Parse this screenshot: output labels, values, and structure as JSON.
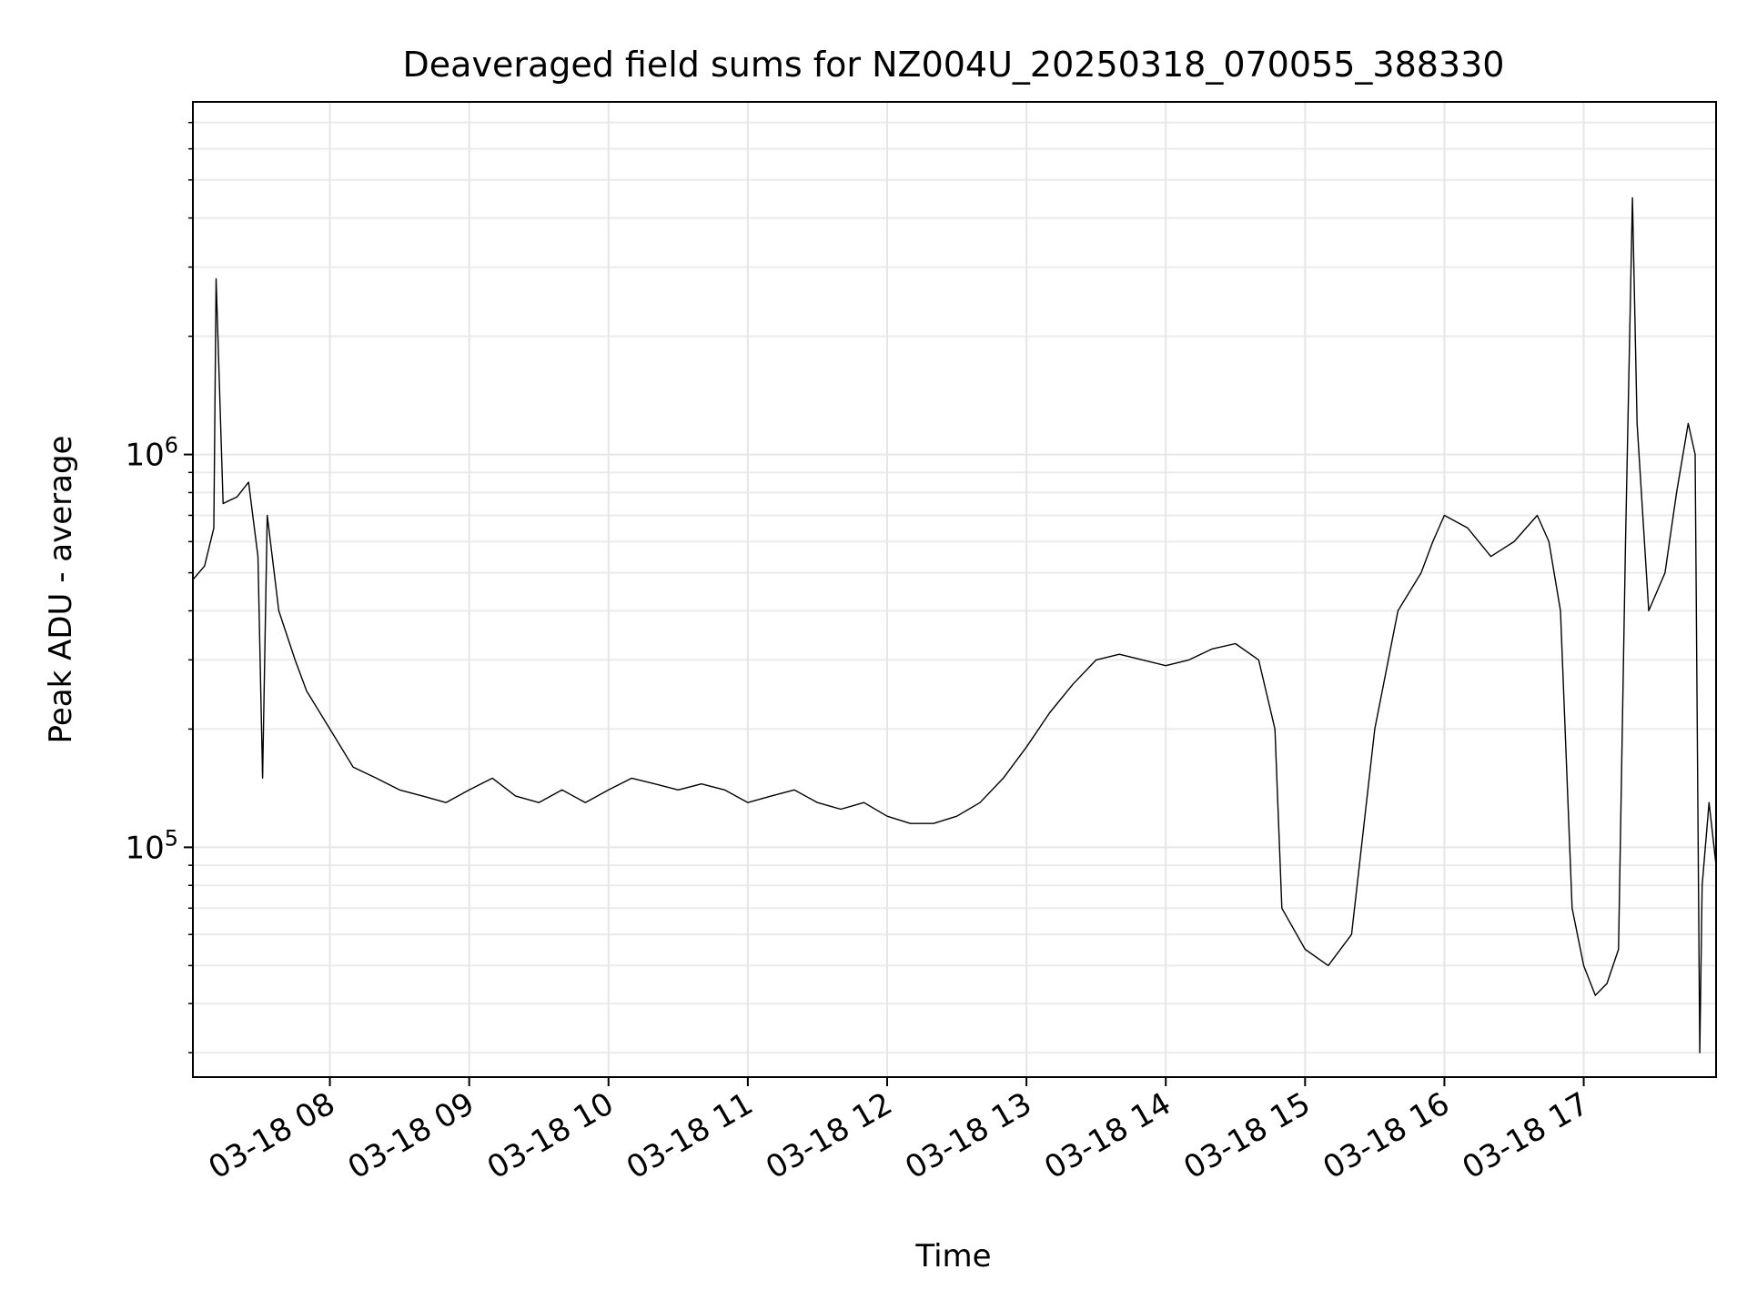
{
  "chart_data": {
    "type": "line",
    "title": "Deaveraged field sums for NZ004U_20250318_070055_388330",
    "xlabel": "Time",
    "ylabel": "Peak ADU - average",
    "yscale": "log",
    "ylim": [
      26000,
      7900000
    ],
    "xlim": [
      "2025-03-18 07:01",
      "2025-03-18 17:57"
    ],
    "grid": true,
    "line_color": "#000000",
    "x_ticks": [
      "03-18 08",
      "03-18 09",
      "03-18 10",
      "03-18 11",
      "03-18 12",
      "03-18 13",
      "03-18 14",
      "03-18 15",
      "03-18 16",
      "03-18 17"
    ],
    "x_tick_times": [
      "2025-03-18 08:00",
      "2025-03-18 09:00",
      "2025-03-18 10:00",
      "2025-03-18 11:00",
      "2025-03-18 12:00",
      "2025-03-18 13:00",
      "2025-03-18 14:00",
      "2025-03-18 15:00",
      "2025-03-18 16:00",
      "2025-03-18 17:00"
    ],
    "y_ticks": [
      {
        "value": 100000,
        "base": "10",
        "exp": "5"
      },
      {
        "value": 1000000,
        "base": "10",
        "exp": "6"
      }
    ],
    "series": [
      {
        "values": [
          [
            "2025-03-18 07:01",
            480000
          ],
          [
            "2025-03-18 07:06",
            520000
          ],
          [
            "2025-03-18 07:10",
            650000
          ],
          [
            "2025-03-18 07:11",
            2800000
          ],
          [
            "2025-03-18 07:12",
            1800000
          ],
          [
            "2025-03-18 07:14",
            750000
          ],
          [
            "2025-03-18 07:20",
            780000
          ],
          [
            "2025-03-18 07:25",
            850000
          ],
          [
            "2025-03-18 07:29",
            550000
          ],
          [
            "2025-03-18 07:31",
            150000
          ],
          [
            "2025-03-18 07:33",
            700000
          ],
          [
            "2025-03-18 07:38",
            400000
          ],
          [
            "2025-03-18 07:45",
            300000
          ],
          [
            "2025-03-18 07:50",
            250000
          ],
          [
            "2025-03-18 08:00",
            200000
          ],
          [
            "2025-03-18 08:10",
            160000
          ],
          [
            "2025-03-18 08:20",
            150000
          ],
          [
            "2025-03-18 08:30",
            140000
          ],
          [
            "2025-03-18 08:40",
            135000
          ],
          [
            "2025-03-18 08:50",
            130000
          ],
          [
            "2025-03-18 09:00",
            140000
          ],
          [
            "2025-03-18 09:10",
            150000
          ],
          [
            "2025-03-18 09:20",
            135000
          ],
          [
            "2025-03-18 09:30",
            130000
          ],
          [
            "2025-03-18 09:40",
            140000
          ],
          [
            "2025-03-18 09:50",
            130000
          ],
          [
            "2025-03-18 10:00",
            140000
          ],
          [
            "2025-03-18 10:10",
            150000
          ],
          [
            "2025-03-18 10:20",
            145000
          ],
          [
            "2025-03-18 10:30",
            140000
          ],
          [
            "2025-03-18 10:40",
            145000
          ],
          [
            "2025-03-18 10:50",
            140000
          ],
          [
            "2025-03-18 11:00",
            130000
          ],
          [
            "2025-03-18 11:10",
            135000
          ],
          [
            "2025-03-18 11:20",
            140000
          ],
          [
            "2025-03-18 11:30",
            130000
          ],
          [
            "2025-03-18 11:40",
            125000
          ],
          [
            "2025-03-18 11:50",
            130000
          ],
          [
            "2025-03-18 12:00",
            120000
          ],
          [
            "2025-03-18 12:10",
            115000
          ],
          [
            "2025-03-18 12:20",
            115000
          ],
          [
            "2025-03-18 12:30",
            120000
          ],
          [
            "2025-03-18 12:40",
            130000
          ],
          [
            "2025-03-18 12:50",
            150000
          ],
          [
            "2025-03-18 13:00",
            180000
          ],
          [
            "2025-03-18 13:10",
            220000
          ],
          [
            "2025-03-18 13:20",
            260000
          ],
          [
            "2025-03-18 13:30",
            300000
          ],
          [
            "2025-03-18 13:40",
            310000
          ],
          [
            "2025-03-18 13:50",
            300000
          ],
          [
            "2025-03-18 14:00",
            290000
          ],
          [
            "2025-03-18 14:10",
            300000
          ],
          [
            "2025-03-18 14:20",
            320000
          ],
          [
            "2025-03-18 14:30",
            330000
          ],
          [
            "2025-03-18 14:40",
            300000
          ],
          [
            "2025-03-18 14:47",
            200000
          ],
          [
            "2025-03-18 14:50",
            70000
          ],
          [
            "2025-03-18 15:00",
            55000
          ],
          [
            "2025-03-18 15:10",
            50000
          ],
          [
            "2025-03-18 15:20",
            60000
          ],
          [
            "2025-03-18 15:30",
            200000
          ],
          [
            "2025-03-18 15:40",
            400000
          ],
          [
            "2025-03-18 15:50",
            500000
          ],
          [
            "2025-03-18 15:55",
            600000
          ],
          [
            "2025-03-18 16:00",
            700000
          ],
          [
            "2025-03-18 16:10",
            650000
          ],
          [
            "2025-03-18 16:20",
            550000
          ],
          [
            "2025-03-18 16:30",
            600000
          ],
          [
            "2025-03-18 16:40",
            700000
          ],
          [
            "2025-03-18 16:45",
            600000
          ],
          [
            "2025-03-18 16:50",
            400000
          ],
          [
            "2025-03-18 16:55",
            70000
          ],
          [
            "2025-03-18 17:00",
            50000
          ],
          [
            "2025-03-18 17:05",
            42000
          ],
          [
            "2025-03-18 17:10",
            45000
          ],
          [
            "2025-03-18 17:15",
            55000
          ],
          [
            "2025-03-18 17:18",
            600000
          ],
          [
            "2025-03-18 17:21",
            4500000
          ],
          [
            "2025-03-18 17:23",
            1200000
          ],
          [
            "2025-03-18 17:28",
            400000
          ],
          [
            "2025-03-18 17:35",
            500000
          ],
          [
            "2025-03-18 17:40",
            800000
          ],
          [
            "2025-03-18 17:45",
            1200000
          ],
          [
            "2025-03-18 17:48",
            1000000
          ],
          [
            "2025-03-18 17:50",
            30000
          ],
          [
            "2025-03-18 17:51",
            80000
          ],
          [
            "2025-03-18 17:54",
            130000
          ],
          [
            "2025-03-18 17:57",
            90000
          ]
        ]
      }
    ]
  }
}
